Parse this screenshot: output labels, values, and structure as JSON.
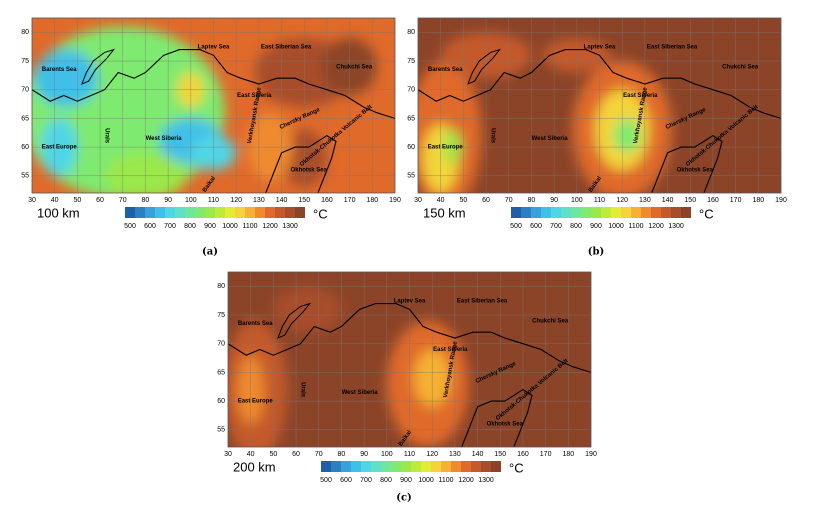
{
  "panels": [
    {
      "depth": "100 km",
      "caption": "(a)"
    },
    {
      "depth": "150 km",
      "caption": "(b)"
    },
    {
      "depth": "200 km",
      "caption": "(c)"
    }
  ],
  "axes": {
    "xlim": [
      30,
      190
    ],
    "ylim": [
      52,
      82.5
    ],
    "x_ticks": [
      30,
      40,
      50,
      60,
      70,
      80,
      90,
      100,
      110,
      120,
      130,
      140,
      150,
      160,
      170,
      180,
      190
    ],
    "y_ticks": [
      55,
      60,
      65,
      70,
      75,
      80
    ]
  },
  "colorbar": {
    "ticks": [
      500,
      600,
      700,
      800,
      900,
      1000,
      1100,
      1200,
      1300
    ],
    "step": 50,
    "colors": [
      "#1f5fa8",
      "#2b7fc4",
      "#3aa0dc",
      "#40c0e8",
      "#4fd6e6",
      "#5fe0c8",
      "#6fe6a0",
      "#7fea70",
      "#9ae84a",
      "#c0ea3a",
      "#e2ec36",
      "#f4d43a",
      "#f6b033",
      "#ef8a2d",
      "#e06a2a",
      "#c45a2c",
      "#a84e2c",
      "#8c4428"
    ],
    "unit": "°C"
  },
  "regions": [
    "Barents Sea",
    "Laptev Sea",
    "East Siberian Sea",
    "Chukchi Sea",
    "East Siberia",
    "West Siberia",
    "East Europe",
    "Urals",
    "Verkhoyansk Range",
    "Chersky Range",
    "Okhotsk-Chukotka Volcanic Belt",
    "Okhotsk Sea",
    "Baikal"
  ]
}
